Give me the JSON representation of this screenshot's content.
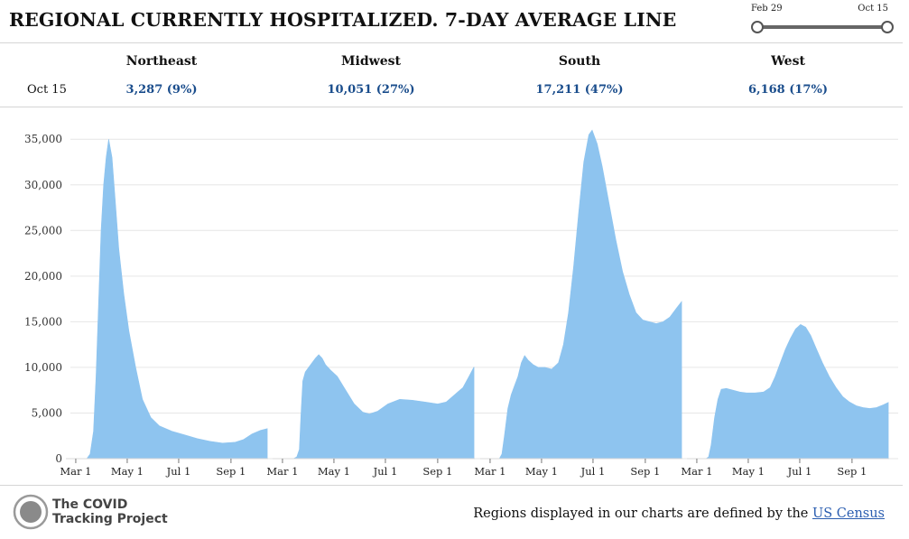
{
  "title": "REGIONAL CURRENTLY HOSPITALIZED. 7-DAY AVERAGE LINE",
  "slider": {
    "start_label": "Feb 29",
    "end_label": "Oct 15"
  },
  "summary": {
    "date_label": "Oct 15",
    "regions": [
      {
        "name": "Northeast",
        "value": "3,287 (9%)"
      },
      {
        "name": "Midwest",
        "value": "10,051 (27%)"
      },
      {
        "name": "South",
        "value": "17,211 (47%)"
      },
      {
        "name": "West",
        "value": "6,168 (17%)"
      }
    ]
  },
  "footer": {
    "logo_line1": "The COVID",
    "logo_line2": "Tracking Project",
    "note": "Regions displayed in our charts are defined by the",
    "note_link": "US Census"
  },
  "chart_data": {
    "type": "area",
    "title": "REGIONAL CURRENTLY HOSPITALIZED. 7-DAY AVERAGE LINE",
    "ylim": [
      0,
      37000
    ],
    "yticks": [
      0,
      5000,
      10000,
      15000,
      20000,
      25000,
      30000,
      35000
    ],
    "ytick_labels": [
      "0",
      "5,000",
      "10,000",
      "15,000",
      "20,000",
      "25,000",
      "30,000",
      "35,000"
    ],
    "x_domain_days": [
      0,
      229
    ],
    "x_tick_days": [
      1,
      62,
      123,
      185
    ],
    "x_tick_labels": [
      "Mar 1",
      "May 1",
      "Jul 1",
      "Sep 1"
    ],
    "color": "#8ec4ef",
    "series": [
      {
        "name": "Northeast",
        "points": [
          [
            0,
            0
          ],
          [
            14,
            0
          ],
          [
            18,
            500
          ],
          [
            22,
            3000
          ],
          [
            25,
            9000
          ],
          [
            28,
            17000
          ],
          [
            31,
            25000
          ],
          [
            34,
            30000
          ],
          [
            37,
            33000
          ],
          [
            40,
            35000
          ],
          [
            44,
            33000
          ],
          [
            48,
            28000
          ],
          [
            52,
            23000
          ],
          [
            58,
            18000
          ],
          [
            64,
            14000
          ],
          [
            72,
            10000
          ],
          [
            80,
            6500
          ],
          [
            90,
            4500
          ],
          [
            100,
            3600
          ],
          [
            115,
            3000
          ],
          [
            130,
            2600
          ],
          [
            145,
            2200
          ],
          [
            160,
            1900
          ],
          [
            175,
            1700
          ],
          [
            190,
            1800
          ],
          [
            200,
            2100
          ],
          [
            210,
            2700
          ],
          [
            220,
            3100
          ],
          [
            228,
            3287
          ]
        ]
      },
      {
        "name": "Midwest",
        "points": [
          [
            0,
            0
          ],
          [
            14,
            0
          ],
          [
            18,
            200
          ],
          [
            21,
            1000
          ],
          [
            23,
            5000
          ],
          [
            25,
            8500
          ],
          [
            28,
            9500
          ],
          [
            32,
            10000
          ],
          [
            36,
            10500
          ],
          [
            40,
            11000
          ],
          [
            44,
            11400
          ],
          [
            48,
            11000
          ],
          [
            52,
            10300
          ],
          [
            58,
            9700
          ],
          [
            66,
            9000
          ],
          [
            76,
            7500
          ],
          [
            86,
            6000
          ],
          [
            96,
            5100
          ],
          [
            104,
            4900
          ],
          [
            114,
            5200
          ],
          [
            126,
            6000
          ],
          [
            140,
            6500
          ],
          [
            155,
            6400
          ],
          [
            170,
            6200
          ],
          [
            185,
            6000
          ],
          [
            195,
            6200
          ],
          [
            205,
            7000
          ],
          [
            215,
            7800
          ],
          [
            222,
            9000
          ],
          [
            228,
            10051
          ]
        ]
      },
      {
        "name": "South",
        "points": [
          [
            0,
            0
          ],
          [
            12,
            0
          ],
          [
            15,
            500
          ],
          [
            18,
            2500
          ],
          [
            22,
            5500
          ],
          [
            26,
            7000
          ],
          [
            30,
            8000
          ],
          [
            34,
            9000
          ],
          [
            38,
            10500
          ],
          [
            42,
            11300
          ],
          [
            46,
            10800
          ],
          [
            52,
            10300
          ],
          [
            58,
            10000
          ],
          [
            66,
            10000
          ],
          [
            74,
            9800
          ],
          [
            82,
            10500
          ],
          [
            88,
            12500
          ],
          [
            94,
            16000
          ],
          [
            100,
            21000
          ],
          [
            106,
            27000
          ],
          [
            112,
            32500
          ],
          [
            118,
            35500
          ],
          [
            122,
            36000
          ],
          [
            128,
            34500
          ],
          [
            134,
            32000
          ],
          [
            142,
            28000
          ],
          [
            150,
            24000
          ],
          [
            158,
            20500
          ],
          [
            166,
            18000
          ],
          [
            174,
            16000
          ],
          [
            182,
            15200
          ],
          [
            190,
            15000
          ],
          [
            198,
            14800
          ],
          [
            206,
            15000
          ],
          [
            214,
            15500
          ],
          [
            222,
            16500
          ],
          [
            228,
            17211
          ]
        ]
      },
      {
        "name": "West",
        "points": [
          [
            0,
            0
          ],
          [
            12,
            0
          ],
          [
            15,
            200
          ],
          [
            18,
            1500
          ],
          [
            22,
            4500
          ],
          [
            26,
            6500
          ],
          [
            30,
            7600
          ],
          [
            36,
            7700
          ],
          [
            44,
            7500
          ],
          [
            52,
            7300
          ],
          [
            60,
            7200
          ],
          [
            70,
            7200
          ],
          [
            80,
            7300
          ],
          [
            88,
            7800
          ],
          [
            94,
            9000
          ],
          [
            100,
            10500
          ],
          [
            106,
            12000
          ],
          [
            112,
            13200
          ],
          [
            118,
            14200
          ],
          [
            124,
            14700
          ],
          [
            130,
            14400
          ],
          [
            136,
            13500
          ],
          [
            142,
            12200
          ],
          [
            150,
            10500
          ],
          [
            158,
            9000
          ],
          [
            166,
            7800
          ],
          [
            174,
            6800
          ],
          [
            182,
            6200
          ],
          [
            190,
            5800
          ],
          [
            198,
            5600
          ],
          [
            206,
            5500
          ],
          [
            214,
            5600
          ],
          [
            222,
            5900
          ],
          [
            228,
            6168
          ]
        ]
      }
    ]
  }
}
